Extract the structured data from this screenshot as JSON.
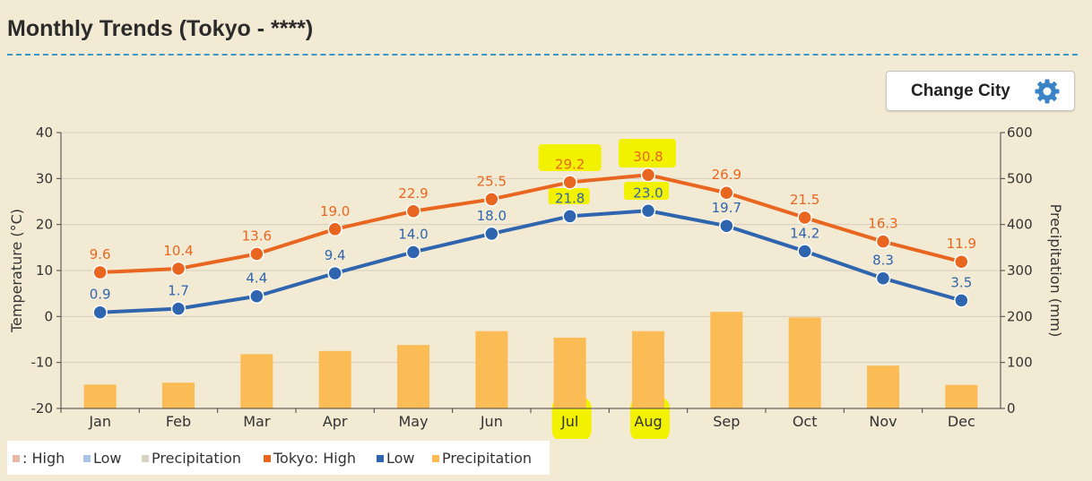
{
  "header": {
    "title": "Monthly Trends (Tokyo - ****)"
  },
  "toolbar": {
    "change_city_label": "Change City",
    "change_city_icon": "gear-icon"
  },
  "colors": {
    "high": "#e8661f",
    "low": "#2f65ae",
    "precip": "#fbbb55",
    "axis": "#444444",
    "background": "#f3ead3",
    "highlight": "#f2f200",
    "faded_high": "#e7b8a4",
    "faded_low": "#a9c3e6",
    "faded_precip": "#d9d1c4"
  },
  "legend": {
    "items": [
      {
        "label": ": High",
        "color": "#e7b8a4"
      },
      {
        "label": "Low",
        "color": "#a9c3e6"
      },
      {
        "label": "Precipitation",
        "color": "#d9d1c4"
      },
      {
        "label": "Tokyo: High",
        "color": "#e8661f"
      },
      {
        "label": "Low",
        "color": "#2f65ae"
      },
      {
        "label": "Precipitation",
        "color": "#fbbb55"
      }
    ]
  },
  "chart_data": {
    "type": "line",
    "title": "Monthly Trends (Tokyo - ****)",
    "categories": [
      "Jan",
      "Feb",
      "Mar",
      "Apr",
      "May",
      "Jun",
      "Jul",
      "Aug",
      "Sep",
      "Oct",
      "Nov",
      "Dec"
    ],
    "series": [
      {
        "name": "Tokyo: High",
        "type": "line",
        "axis": "left",
        "values": [
          9.6,
          10.4,
          13.6,
          19.0,
          22.9,
          25.5,
          29.2,
          30.8,
          26.9,
          21.5,
          16.3,
          11.9
        ],
        "labels": [
          "9.6",
          "10.4",
          "13.6",
          "19.0",
          "22.9",
          "25.5",
          "29.2",
          "30.8",
          "26.9",
          "21.5",
          "16.3",
          "11.9"
        ]
      },
      {
        "name": "Low",
        "type": "line",
        "axis": "left",
        "values": [
          0.9,
          1.7,
          4.4,
          9.4,
          14.0,
          18.0,
          21.8,
          23.0,
          19.7,
          14.2,
          8.3,
          3.5
        ],
        "labels": [
          "0.9",
          "1.7",
          "4.4",
          "9.4",
          "14.0",
          "18.0",
          "21.8",
          "23.0",
          "19.7",
          "14.2",
          "8.3",
          "3.5"
        ]
      },
      {
        "name": "Precipitation",
        "type": "bar",
        "axis": "right",
        "values": [
          52,
          56,
          118,
          125,
          138,
          168,
          154,
          168,
          210,
          198,
          93,
          51
        ]
      }
    ],
    "ylabel": "Temperature (°C)",
    "y2label": "Precipitation (mm)",
    "ylim": [
      -20,
      40
    ],
    "y2lim": [
      0,
      600
    ],
    "yticks": [
      "40",
      "30",
      "20",
      "10",
      "0",
      "-10",
      "-20"
    ],
    "y2ticks": [
      "600",
      "500",
      "400",
      "300",
      "200",
      "100",
      "0"
    ],
    "highlighted": [
      "Jul",
      "Aug"
    ],
    "grid": true,
    "legend_position": "bottom-left"
  }
}
